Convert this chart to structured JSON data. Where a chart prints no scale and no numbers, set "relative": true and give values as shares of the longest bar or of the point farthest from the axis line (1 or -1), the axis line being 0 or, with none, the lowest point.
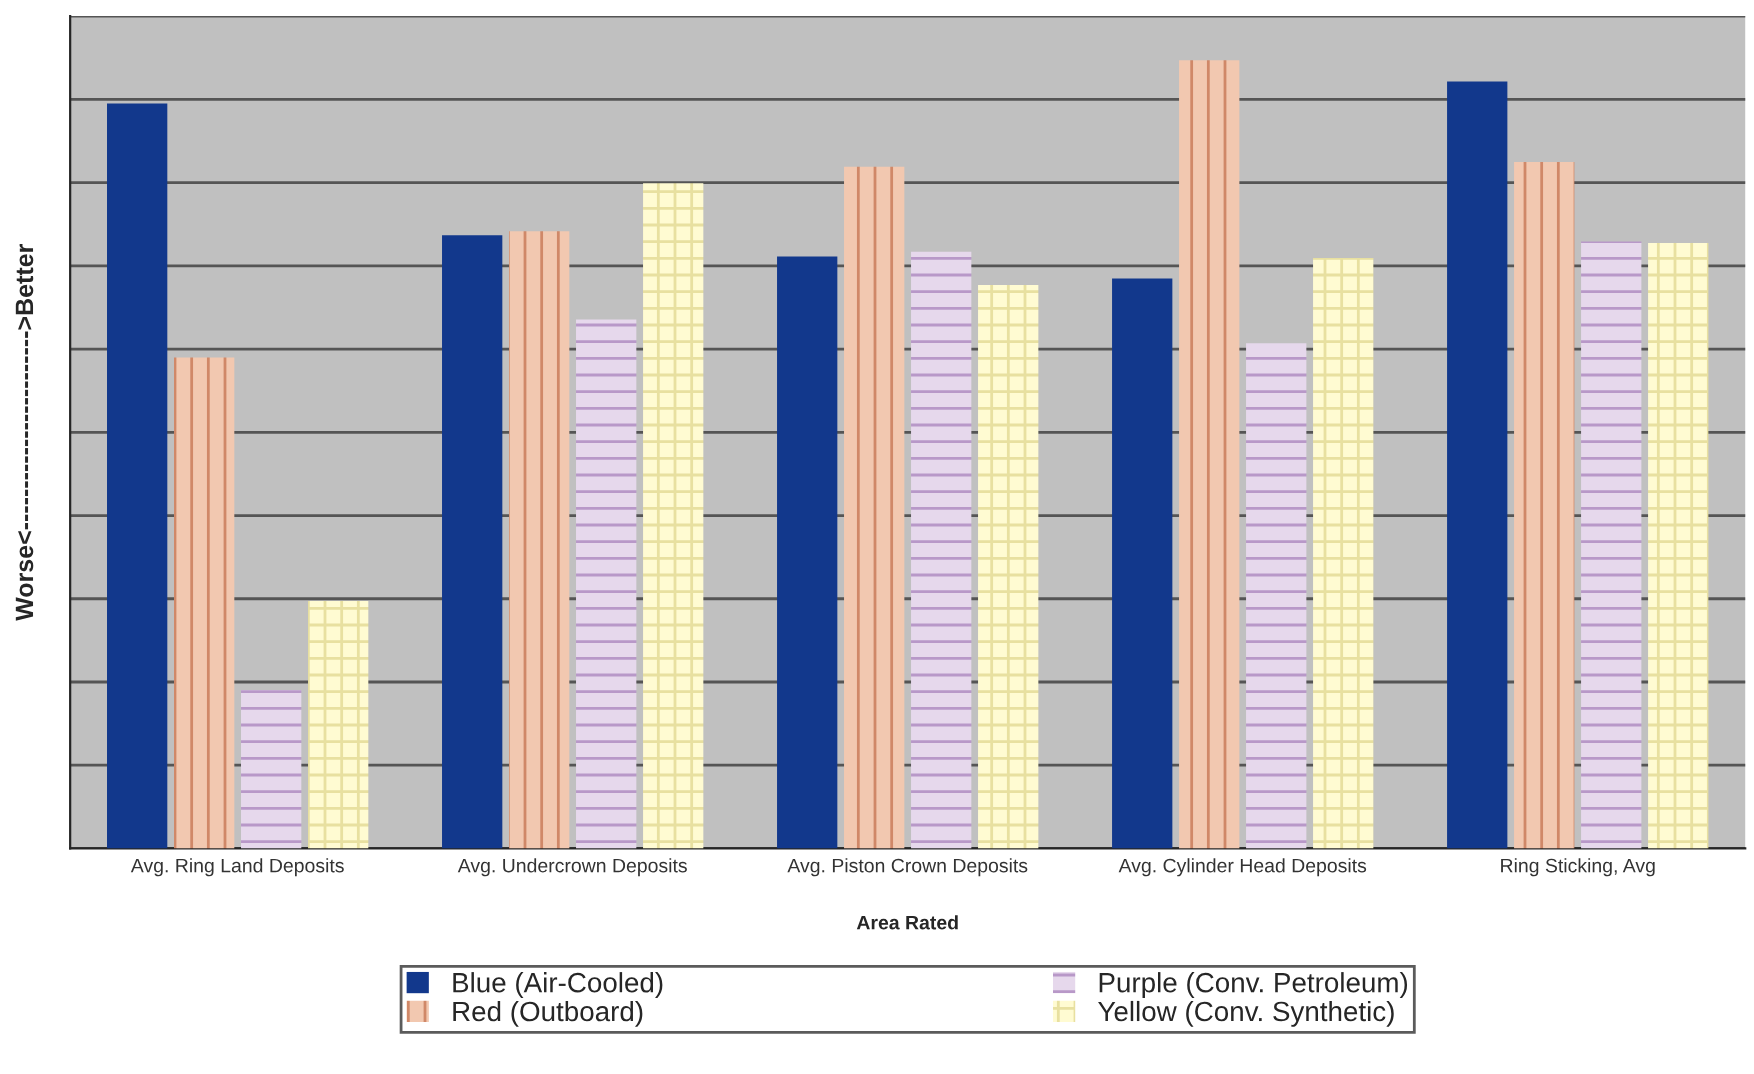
{
  "chart_data": {
    "type": "bar",
    "relative": true,
    "xlabel": "Area Rated",
    "ylabel": "Worse<------------------------>Better",
    "categories": [
      "Avg. Ring Land Deposits",
      "Avg. Undercrown Deposits",
      "Avg. Piston Crown Deposits",
      "Avg. Cylinder Head Deposits",
      "Ring Sticking, Avg"
    ],
    "series": [
      {
        "name": "Blue (Air-Cooled)",
        "color": "#12388c",
        "values": [
          0.945,
          0.778,
          0.751,
          0.723,
          0.973
        ]
      },
      {
        "name": "Red (Outboard)",
        "color": "#f2c8b0",
        "values": [
          0.623,
          0.783,
          0.865,
          1,
          0.871
        ]
      },
      {
        "name": "Purple (Conv. Petroleum)",
        "color": "#e6d8ec",
        "values": [
          0.201,
          0.671,
          0.757,
          0.641,
          0.77
        ]
      },
      {
        "name": "Yellow (Conv. Synthetic)",
        "color": "#fffbd2",
        "values": [
          0.314,
          0.844,
          0.715,
          0.749,
          0.768
        ]
      }
    ],
    "grid": "y",
    "legend": "bottom"
  }
}
